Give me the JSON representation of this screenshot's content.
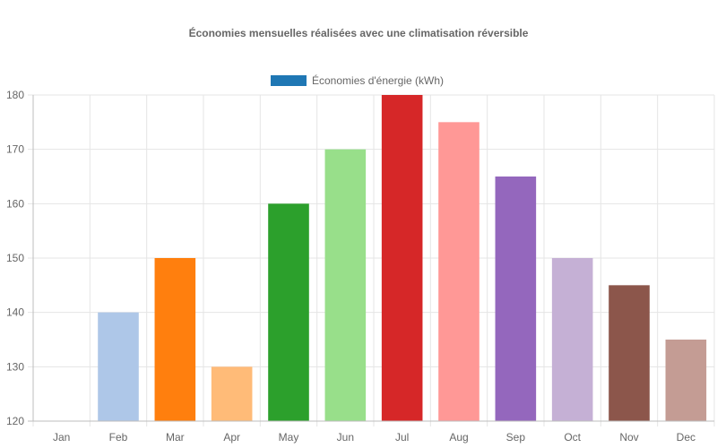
{
  "chart_data": {
    "type": "bar",
    "title": "Économies mensuelles réalisées avec une climatisation réversible",
    "legend": {
      "position": "top",
      "label": "Économies d'énergie (kWh)",
      "color": "#1f77b4"
    },
    "categories": [
      "Jan",
      "Feb",
      "Mar",
      "Apr",
      "May",
      "Jun",
      "Jul",
      "Aug",
      "Sep",
      "Oct",
      "Nov",
      "Dec"
    ],
    "series": [
      {
        "name": "Économies d'énergie (kWh)",
        "values": [
          120,
          140,
          150,
          130,
          160,
          170,
          180,
          175,
          165,
          150,
          145,
          135
        ],
        "colors": [
          "#1f77b4",
          "#aec7e8",
          "#ff7f0e",
          "#ffbb78",
          "#2ca02c",
          "#98df8a",
          "#d62728",
          "#ff9896",
          "#9467bd",
          "#c5b0d5",
          "#8c564b",
          "#c49c94"
        ]
      }
    ],
    "ylim": [
      120,
      180
    ],
    "yticks": [
      120,
      130,
      140,
      150,
      160,
      170,
      180
    ],
    "grid": true
  }
}
